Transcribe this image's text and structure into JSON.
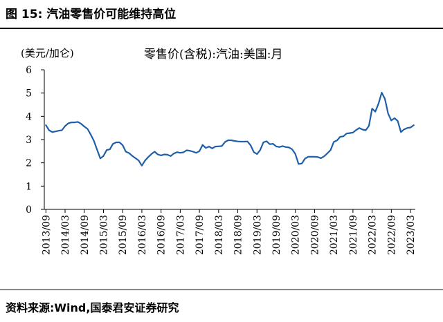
{
  "header": {
    "figure_title": "图 15:  汽油零售价可能维持高位"
  },
  "footer": {
    "source": "资料来源:Wind,国泰君安证券研究"
  },
  "colors": {
    "line": "#1f5ea8",
    "axis": "#000000"
  },
  "chart_data": {
    "type": "line",
    "title": "零售价(含税):汽油:美国:月",
    "ylabel": "(美元/加仑)",
    "xlabel": "",
    "ylim": [
      0,
      6
    ],
    "yticks": [
      "0",
      "1",
      "2",
      "3",
      "4",
      "5",
      "6"
    ],
    "xticks": [
      "2013/09",
      "2014/03",
      "2014/09",
      "2015/03",
      "2015/09",
      "2016/03",
      "2016/09",
      "2017/03",
      "2017/09",
      "2018/03",
      "2018/09",
      "2019/03",
      "2019/09",
      "2020/03",
      "2020/09",
      "2021/03",
      "2021/09",
      "2022/03",
      "2022/09",
      "2023/03"
    ],
    "grid": false,
    "x": [
      "2013/09",
      "2013/10",
      "2013/11",
      "2013/12",
      "2014/01",
      "2014/02",
      "2014/03",
      "2014/04",
      "2014/05",
      "2014/06",
      "2014/07",
      "2014/08",
      "2014/09",
      "2014/10",
      "2014/11",
      "2014/12",
      "2015/01",
      "2015/02",
      "2015/03",
      "2015/04",
      "2015/05",
      "2015/06",
      "2015/07",
      "2015/08",
      "2015/09",
      "2015/10",
      "2015/11",
      "2015/12",
      "2016/01",
      "2016/02",
      "2016/03",
      "2016/04",
      "2016/05",
      "2016/06",
      "2016/07",
      "2016/08",
      "2016/09",
      "2016/10",
      "2016/11",
      "2016/12",
      "2017/01",
      "2017/02",
      "2017/03",
      "2017/04",
      "2017/05",
      "2017/06",
      "2017/07",
      "2017/08",
      "2017/09",
      "2017/10",
      "2017/11",
      "2017/12",
      "2018/01",
      "2018/02",
      "2018/03",
      "2018/04",
      "2018/05",
      "2018/06",
      "2018/07",
      "2018/08",
      "2018/09",
      "2018/10",
      "2018/11",
      "2018/12",
      "2019/01",
      "2019/02",
      "2019/03",
      "2019/04",
      "2019/05",
      "2019/06",
      "2019/07",
      "2019/08",
      "2019/09",
      "2019/10",
      "2019/11",
      "2019/12",
      "2020/01",
      "2020/02",
      "2020/03",
      "2020/04",
      "2020/05",
      "2020/06",
      "2020/07",
      "2020/08",
      "2020/09",
      "2020/10",
      "2020/11",
      "2020/12",
      "2021/01",
      "2021/02",
      "2021/03",
      "2021/04",
      "2021/05",
      "2021/06",
      "2021/07",
      "2021/08",
      "2021/09",
      "2021/10",
      "2021/11",
      "2021/12",
      "2022/01",
      "2022/02",
      "2022/03",
      "2022/04",
      "2022/05",
      "2022/06",
      "2022/07",
      "2022/08",
      "2022/09",
      "2022/10",
      "2022/11",
      "2022/12",
      "2023/01",
      "2023/02",
      "2023/03",
      "2023/04"
    ],
    "series": [
      {
        "values": [
          3.62,
          3.4,
          3.32,
          3.35,
          3.38,
          3.4,
          3.58,
          3.7,
          3.74,
          3.74,
          3.76,
          3.68,
          3.56,
          3.46,
          3.22,
          2.95,
          2.57,
          2.19,
          2.3,
          2.55,
          2.58,
          2.82,
          2.88,
          2.88,
          2.76,
          2.48,
          2.42,
          2.3,
          2.2,
          2.1,
          1.88,
          2.1,
          2.25,
          2.38,
          2.48,
          2.36,
          2.32,
          2.36,
          2.35,
          2.29,
          2.4,
          2.46,
          2.43,
          2.45,
          2.54,
          2.52,
          2.48,
          2.43,
          2.5,
          2.77,
          2.64,
          2.7,
          2.62,
          2.7,
          2.71,
          2.72,
          2.9,
          2.97,
          2.97,
          2.94,
          2.92,
          2.91,
          2.91,
          2.92,
          2.76,
          2.46,
          2.38,
          2.55,
          2.88,
          2.93,
          2.8,
          2.82,
          2.71,
          2.68,
          2.72,
          2.68,
          2.66,
          2.58,
          2.38,
          1.95,
          1.97,
          2.18,
          2.26,
          2.26,
          2.26,
          2.25,
          2.2,
          2.28,
          2.41,
          2.55,
          2.9,
          2.96,
          3.12,
          3.14,
          3.26,
          3.28,
          3.3,
          3.41,
          3.5,
          3.43,
          3.4,
          3.59,
          4.33,
          4.2,
          4.55,
          5.02,
          4.75,
          4.12,
          3.82,
          3.92,
          3.8,
          3.32,
          3.44,
          3.5,
          3.52,
          3.62
        ]
      }
    ]
  }
}
